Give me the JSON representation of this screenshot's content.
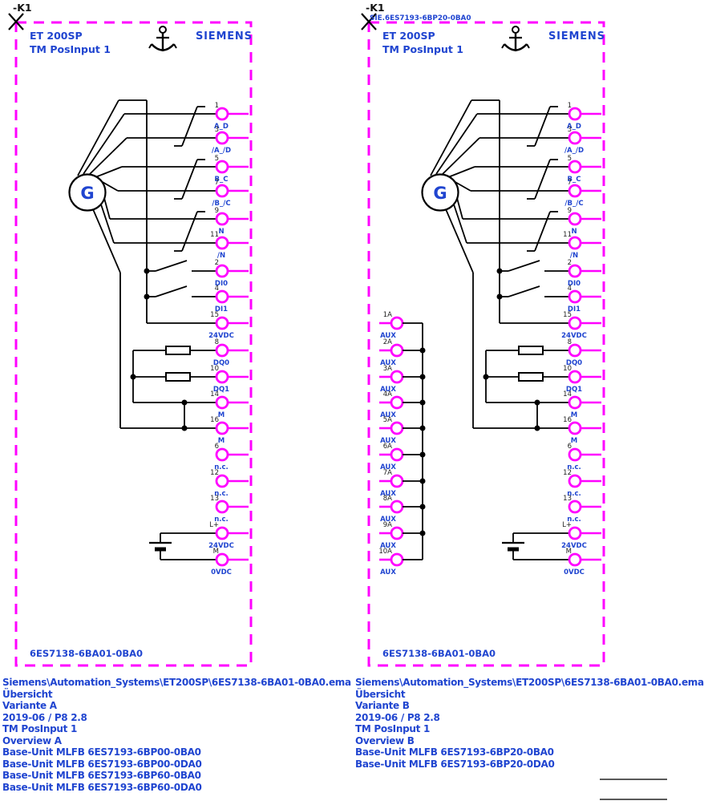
{
  "colors": {
    "magenta": "#ff00ff",
    "blue": "#2045d0",
    "wire": "#000000",
    "pin_text": "#222222"
  },
  "panels": [
    {
      "device_tag": "-K1",
      "device_subtext": "",
      "product_line": "ET 200SP",
      "module": "TM PosInput 1",
      "brand": "SIEMENS",
      "encoder_label": "G",
      "mlfb": "6ES7138-6BA01-0BA0",
      "terminals": [
        {
          "pin": "1",
          "label": "A_D"
        },
        {
          "pin": "3",
          "label": "/A_/D"
        },
        {
          "pin": "5",
          "label": "B_C"
        },
        {
          "pin": "7",
          "label": "/B_/C"
        },
        {
          "pin": "9",
          "label": "N"
        },
        {
          "pin": "11",
          "label": "/N"
        },
        {
          "pin": "2",
          "label": "DI0"
        },
        {
          "pin": "4",
          "label": "DI1"
        },
        {
          "pin": "15",
          "label": "24VDC"
        },
        {
          "pin": "8",
          "label": "DQ0"
        },
        {
          "pin": "10",
          "label": "DQ1"
        },
        {
          "pin": "14",
          "label": "M"
        },
        {
          "pin": "16",
          "label": "M"
        },
        {
          "pin": "6",
          "label": "n.c."
        },
        {
          "pin": "12",
          "label": "n.c."
        },
        {
          "pin": "13",
          "label": "n.c."
        },
        {
          "pin": "L+",
          "label": "24VDC"
        },
        {
          "pin": "M",
          "label": "0VDC"
        }
      ],
      "aux_terminals": []
    },
    {
      "device_tag": "-K1",
      "device_subtext": "SIE.6ES7193-6BP20-0BA0",
      "product_line": "ET 200SP",
      "module": "TM PosInput 1",
      "brand": "SIEMENS",
      "encoder_label": "G",
      "mlfb": "6ES7138-6BA01-0BA0",
      "terminals": [
        {
          "pin": "1",
          "label": "A_D"
        },
        {
          "pin": "3",
          "label": "/A_/D"
        },
        {
          "pin": "5",
          "label": "B_C"
        },
        {
          "pin": "7",
          "label": "/B_/C"
        },
        {
          "pin": "9",
          "label": "N"
        },
        {
          "pin": "11",
          "label": "/N"
        },
        {
          "pin": "2",
          "label": "DI0"
        },
        {
          "pin": "4",
          "label": "DI1"
        },
        {
          "pin": "15",
          "label": "24VDC"
        },
        {
          "pin": "8",
          "label": "DQ0"
        },
        {
          "pin": "10",
          "label": "DQ1"
        },
        {
          "pin": "14",
          "label": "M"
        },
        {
          "pin": "16",
          "label": "M"
        },
        {
          "pin": "6",
          "label": "n.c."
        },
        {
          "pin": "12",
          "label": "n.c."
        },
        {
          "pin": "13",
          "label": "n.c."
        },
        {
          "pin": "L+",
          "label": "24VDC"
        },
        {
          "pin": "M",
          "label": "0VDC"
        }
      ],
      "aux_terminals": [
        {
          "pin": "1A",
          "label": "AUX"
        },
        {
          "pin": "2A",
          "label": "AUX"
        },
        {
          "pin": "3A",
          "label": "AUX"
        },
        {
          "pin": "4A",
          "label": "AUX"
        },
        {
          "pin": "5A",
          "label": "AUX"
        },
        {
          "pin": "6A",
          "label": "AUX"
        },
        {
          "pin": "7A",
          "label": "AUX"
        },
        {
          "pin": "8A",
          "label": "AUX"
        },
        {
          "pin": "9A",
          "label": "AUX"
        },
        {
          "pin": "10A",
          "label": "AUX"
        }
      ]
    }
  ],
  "footer_left": {
    "lines": [
      "Siemens\\Automation_Systems\\ET200SP\\6ES7138-6BA01-0BA0.ema",
      "Übersicht",
      "Variante A",
      "2019-06 / P8 2.8",
      "TM PosInput 1",
      "Overview A",
      "Base-Unit MLFB 6ES7193-6BP00-0BA0",
      "Base-Unit MLFB 6ES7193-6BP00-0DA0",
      "Base-Unit MLFB 6ES7193-6BP60-0BA0",
      "Base-Unit MLFB 6ES7193-6BP60-0DA0"
    ]
  },
  "footer_right": {
    "lines": [
      "Siemens\\Automation_Systems\\ET200SP\\6ES7138-6BA01-0BA0.ema",
      "Übersicht",
      "Variante B",
      "2019-06 / P8 2.8",
      "TM PosInput 1",
      "Overview B",
      "Base-Unit MLFB 6ES7193-6BP20-0BA0",
      "Base-Unit MLFB 6ES7193-6BP20-0DA0"
    ]
  }
}
